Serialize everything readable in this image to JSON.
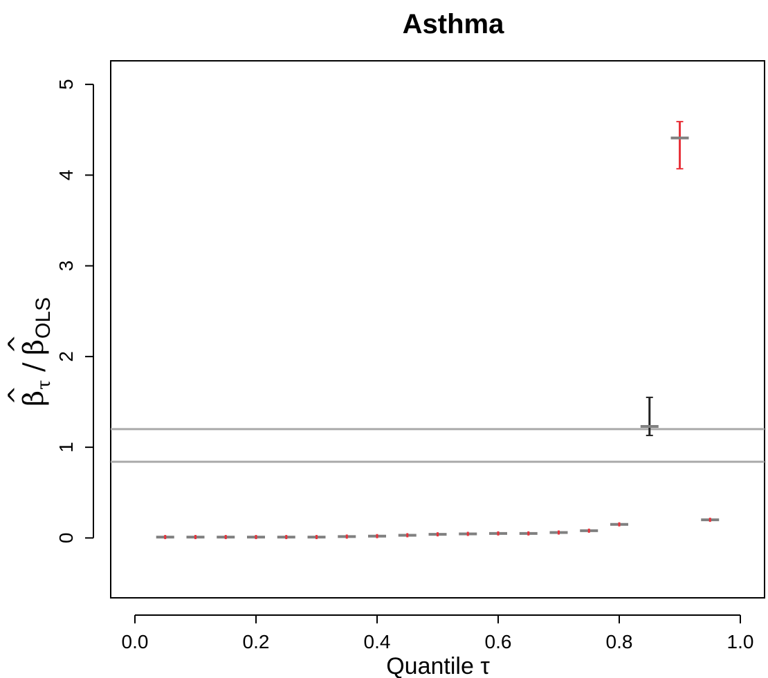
{
  "chart_data": {
    "type": "scatter",
    "title": "Asthma",
    "xlabel": "Quantile τ",
    "ylabel": {
      "beta": "β",
      "tau": "τ",
      "slash": "/",
      "ols": "OLS",
      "hat": "^"
    },
    "xlim": [
      -0.04,
      1.04
    ],
    "ylim": [
      -0.66,
      5.26
    ],
    "x_ticks": [
      {
        "value": 0.0,
        "label": "0.0"
      },
      {
        "value": 0.2,
        "label": "0.2"
      },
      {
        "value": 0.4,
        "label": "0.4"
      },
      {
        "value": 0.6,
        "label": "0.6"
      },
      {
        "value": 0.8,
        "label": "0.8"
      },
      {
        "value": 1.0,
        "label": "1.0"
      }
    ],
    "y_ticks": [
      {
        "value": 0,
        "label": "0"
      },
      {
        "value": 1,
        "label": "1"
      },
      {
        "value": 2,
        "label": "2"
      },
      {
        "value": 3,
        "label": "3"
      },
      {
        "value": 4,
        "label": "4"
      },
      {
        "value": 5,
        "label": "5"
      }
    ],
    "reference_lines": [
      1.2,
      0.84
    ],
    "colors": {
      "estimate": "#808080",
      "ci_red": "#e8333b",
      "ci_black": "#222222",
      "reference": "#aaaaaa"
    },
    "points": [
      {
        "tau": 0.05,
        "estimate": 0.01,
        "lower": 0.0,
        "upper": 0.02,
        "ci_color": "red"
      },
      {
        "tau": 0.1,
        "estimate": 0.01,
        "lower": 0.0,
        "upper": 0.02,
        "ci_color": "red"
      },
      {
        "tau": 0.15,
        "estimate": 0.01,
        "lower": 0.0,
        "upper": 0.02,
        "ci_color": "red"
      },
      {
        "tau": 0.2,
        "estimate": 0.01,
        "lower": 0.0,
        "upper": 0.02,
        "ci_color": "red"
      },
      {
        "tau": 0.25,
        "estimate": 0.01,
        "lower": 0.0,
        "upper": 0.02,
        "ci_color": "red"
      },
      {
        "tau": 0.3,
        "estimate": 0.01,
        "lower": 0.0,
        "upper": 0.02,
        "ci_color": "red"
      },
      {
        "tau": 0.35,
        "estimate": 0.015,
        "lower": 0.005,
        "upper": 0.025,
        "ci_color": "red"
      },
      {
        "tau": 0.4,
        "estimate": 0.02,
        "lower": 0.01,
        "upper": 0.03,
        "ci_color": "red"
      },
      {
        "tau": 0.45,
        "estimate": 0.03,
        "lower": 0.02,
        "upper": 0.04,
        "ci_color": "red"
      },
      {
        "tau": 0.5,
        "estimate": 0.04,
        "lower": 0.03,
        "upper": 0.05,
        "ci_color": "red"
      },
      {
        "tau": 0.55,
        "estimate": 0.045,
        "lower": 0.035,
        "upper": 0.055,
        "ci_color": "red"
      },
      {
        "tau": 0.6,
        "estimate": 0.05,
        "lower": 0.04,
        "upper": 0.06,
        "ci_color": "red"
      },
      {
        "tau": 0.65,
        "estimate": 0.05,
        "lower": 0.04,
        "upper": 0.06,
        "ci_color": "red"
      },
      {
        "tau": 0.7,
        "estimate": 0.06,
        "lower": 0.05,
        "upper": 0.07,
        "ci_color": "red"
      },
      {
        "tau": 0.75,
        "estimate": 0.08,
        "lower": 0.07,
        "upper": 0.09,
        "ci_color": "red"
      },
      {
        "tau": 0.8,
        "estimate": 0.15,
        "lower": 0.13,
        "upper": 0.17,
        "ci_color": "red"
      },
      {
        "tau": 0.85,
        "estimate": 1.23,
        "lower": 1.13,
        "upper": 1.55,
        "ci_color": "black"
      },
      {
        "tau": 0.9,
        "estimate": 4.41,
        "lower": 4.07,
        "upper": 4.59,
        "ci_color": "red"
      },
      {
        "tau": 0.95,
        "estimate": 0.2,
        "lower": 0.18,
        "upper": 0.22,
        "ci_color": "red"
      }
    ]
  }
}
